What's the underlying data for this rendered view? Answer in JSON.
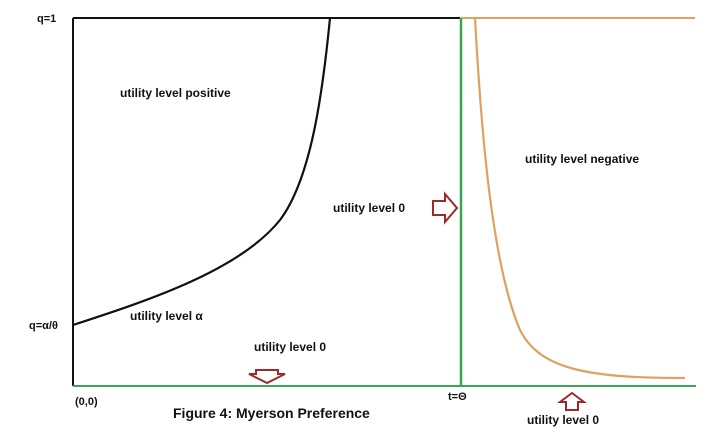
{
  "axis_labels": {
    "y_top": "q=1",
    "y_intercept": "q=α/θ",
    "origin": "(0,0)",
    "x_threshold": "t=Θ"
  },
  "region_labels": {
    "utility_positive": "utility level positive",
    "utility_negative": "utility level negative",
    "utility_zero_middle": "utility level 0",
    "utility_alpha": "utility level α",
    "utility_zero_bottom": "utility level 0",
    "utility_zero_right_bottom": "utility level 0"
  },
  "caption": "Figure 4:  Myerson Preference",
  "colors": {
    "axes": "#111111",
    "curve_left": "#111111",
    "threshold_line": "#3aa655",
    "bottom_axis": "#3aa655",
    "curve_right": "#e0a060",
    "arrow_outline": "#9e2a2b",
    "text": "#111111"
  },
  "icons": {
    "arrow_right": "arrow-right-icon",
    "arrow_down": "arrow-down-icon",
    "arrow_up": "arrow-up-icon"
  }
}
